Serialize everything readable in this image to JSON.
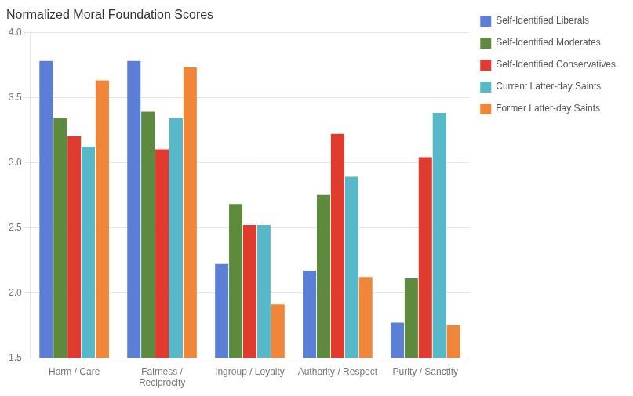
{
  "chart_data": {
    "type": "bar",
    "title": "Normalized Moral Foundation Scores",
    "categories": [
      "Harm / Care",
      "Fairness /\nReciprocity",
      "Ingroup / Loyalty",
      "Authority / Respect",
      "Purity / Sanctity"
    ],
    "series": [
      {
        "name": "Self-Identified Liberals",
        "color": "#5B7FD4",
        "values": [
          3.78,
          3.78,
          2.22,
          2.17,
          1.77
        ]
      },
      {
        "name": "Self-Identified Moderates",
        "color": "#5D8A3C",
        "values": [
          3.34,
          3.39,
          2.68,
          2.75,
          2.11
        ]
      },
      {
        "name": "Self-Identified Conservatives",
        "color": "#E03B2E",
        "values": [
          3.2,
          3.1,
          2.52,
          3.22,
          3.04
        ]
      },
      {
        "name": "Current Latter-day Saints",
        "color": "#56B8C8",
        "values": [
          3.12,
          3.34,
          2.52,
          2.89,
          3.38
        ]
      },
      {
        "name": "Former Latter-day Saints",
        "color": "#F0863A",
        "values": [
          3.63,
          3.73,
          1.91,
          2.12,
          1.75
        ]
      }
    ],
    "ylim": [
      1.5,
      4.0
    ],
    "yticks": [
      1.5,
      {
        "value": 2.0,
        "label": "2.0"
      },
      2.5,
      {
        "value": 3.0,
        "label": "3.0"
      },
      3.5,
      {
        "value": 4.0,
        "label": "4.0"
      }
    ],
    "grid": true,
    "legend": "right"
  }
}
